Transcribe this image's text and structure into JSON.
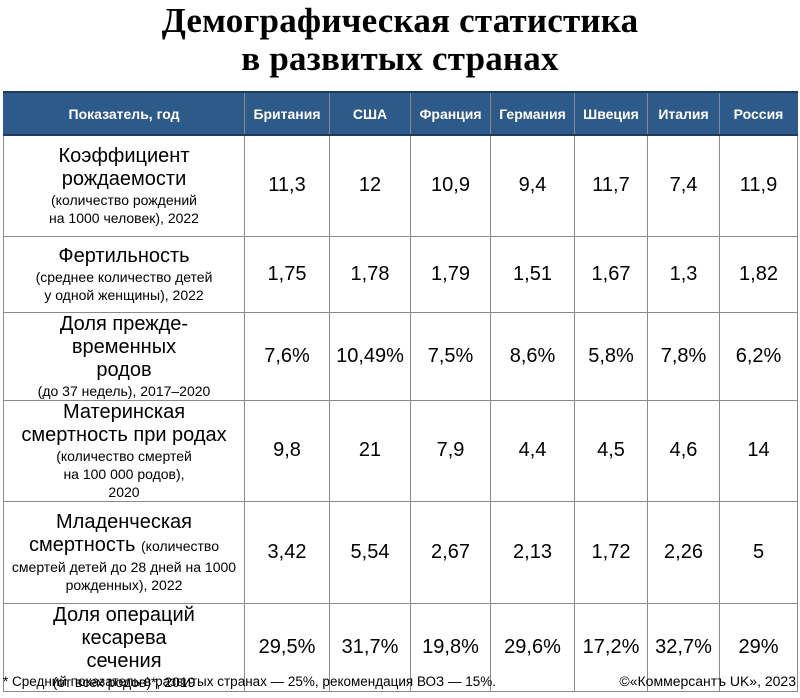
{
  "title": {
    "line1": "Демографическая статистика",
    "line2": "в развитых странах"
  },
  "table": {
    "headers": [
      "Показатель, год",
      "Британия",
      "США",
      "Франция",
      "Германия",
      "Швеция",
      "Италия",
      "Россия"
    ],
    "rows": [
      {
        "label_main": "Коэффициент рождаемости",
        "label_sub": "(количество рождений на 1000 человек), 2022",
        "values": [
          "11,3",
          "12",
          "10,9",
          "9,4",
          "11,7",
          "7,4",
          "11,9"
        ]
      },
      {
        "label_main": "Фертильность",
        "label_sub": "(среднее количество детей у одной женщины), 2022",
        "values": [
          "1,75",
          "1,78",
          "1,79",
          "1,51",
          "1,67",
          "1,3",
          "1,82"
        ]
      },
      {
        "label_main": "Доля преждe-временных родов",
        "label_sub": "(до 37 недель), 2017–2020",
        "values": [
          "7,6%",
          "10,49%",
          "7,5%",
          "8,6%",
          "5,8%",
          "7,8%",
          "6,2%"
        ]
      },
      {
        "label_main": "Материнская смертность при родах",
        "label_sub": "(количество смертей на 100 000 родов), 2020",
        "values": [
          "9,8",
          "21",
          "7,9",
          "4,4",
          "4,5",
          "4,6",
          "14"
        ]
      },
      {
        "label_main": "Младенческая смертность",
        "label_inline": "(количество",
        "label_sub": "смертей детей до 28 дней на 1000 рожденных), 2022",
        "values": [
          "3,42",
          "5,54",
          "2,67",
          "2,13",
          "1,72",
          "2,26",
          "5"
        ]
      },
      {
        "label_main": "Доля операций кесарева сечения",
        "label_sub": "(от всех родов)*, 2019",
        "values": [
          "29,5%",
          "31,7%",
          "19,8%",
          "29,6%",
          "17,2%",
          "32,7%",
          "29%"
        ]
      }
    ]
  },
  "footnote": "* Средний показатель в развитых странах — 25%, рекомендация ВОЗ — 15%.",
  "copyright": "©«Коммерсантъ UK», 2023",
  "colors": {
    "header_bg": "#2e5a8a",
    "header_text": "#ffffff",
    "grid": "#8a8a8a"
  }
}
